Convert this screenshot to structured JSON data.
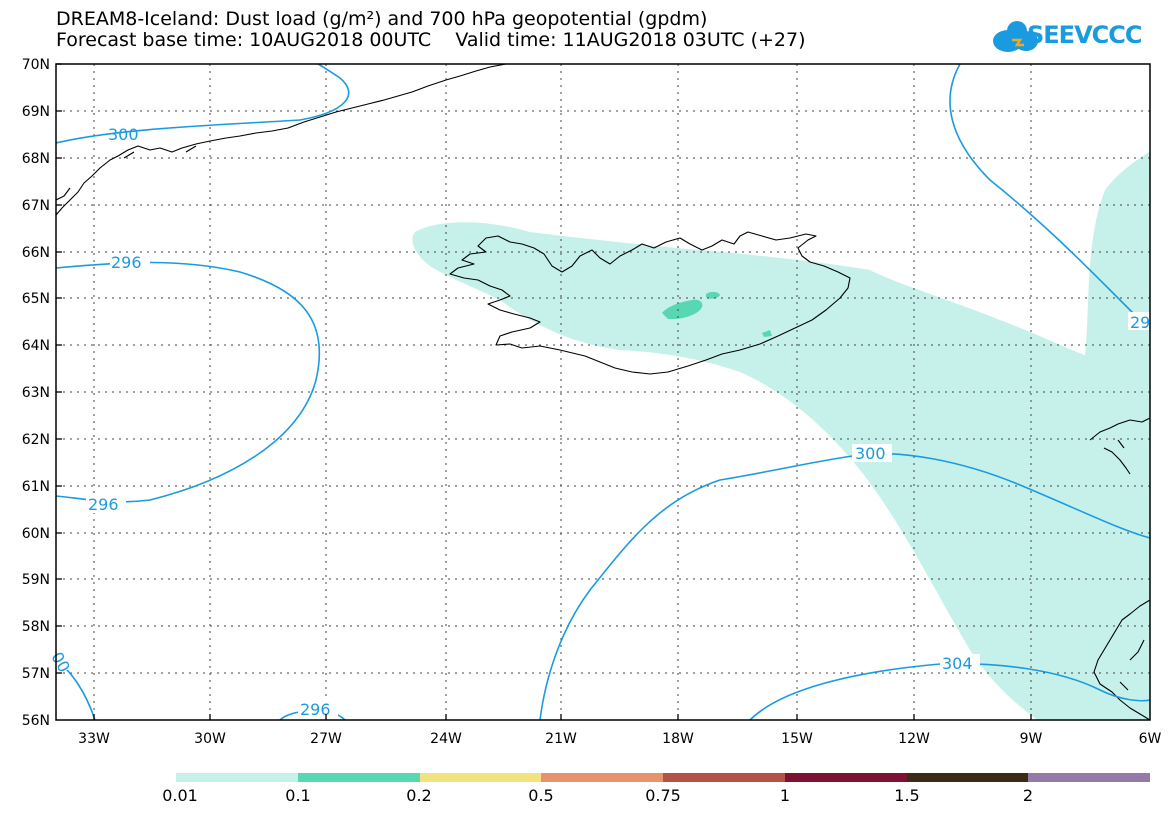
{
  "title": {
    "line1": "DREAM8-Iceland: Dust load (g/m²) and 700 hPa geopotential (gpdm)",
    "line2": "Forecast base time: 10AUG2018 00UTC    Valid time: 11AUG2018 03UTC (+27)"
  },
  "logo": {
    "text": "SEEVCCC",
    "color": "#1a9be0"
  },
  "map": {
    "lat_labels": [
      "70N",
      "69N",
      "68N",
      "67N",
      "66N",
      "65N",
      "64N",
      "63N",
      "62N",
      "61N",
      "60N",
      "59N",
      "58N",
      "57N",
      "56N"
    ],
    "lon_labels": [
      "33W",
      "30W",
      "27W",
      "24W",
      "21W",
      "18W",
      "15W",
      "12W",
      "9W",
      "6W"
    ],
    "lat_range": [
      56,
      70
    ],
    "lon_range": [
      -34.3,
      -6
    ],
    "grid": "dotted",
    "contour_color": "#1a9be0",
    "contour_labels": [
      "300",
      "296",
      "296",
      "296",
      "300",
      "304",
      "29",
      "00"
    ]
  },
  "colorbar": {
    "colors": [
      "#c6f1ea",
      "#57d8b3",
      "#f2e37e",
      "#e8926c",
      "#b4524a",
      "#7e1131",
      "#3b2a18",
      "#9479a9"
    ],
    "ticks": [
      "0.01",
      "0.1",
      "0.2",
      "0.5",
      "0.75",
      "1",
      "1.5",
      "2"
    ]
  }
}
